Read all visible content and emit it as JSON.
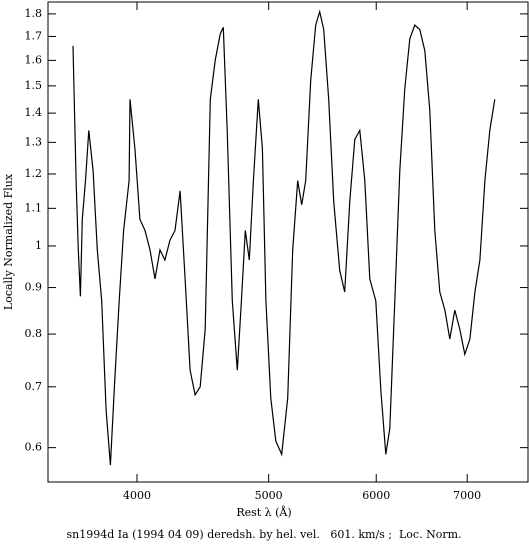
{
  "chart_data": {
    "type": "line",
    "xlabel": "Rest λ (Å)",
    "ylabel": "Locally Normalized Flux",
    "caption": "sn1994d Ia (1994 04 09) deredsh. by hel. vel.   601. km/s ;  Loc. Norm.",
    "xscale": "log",
    "yscale": "log",
    "xlim": [
      3440,
      7760
    ],
    "ylim": [
      0.55,
      1.855
    ],
    "xticks": [
      4000,
      5000,
      6000,
      7000
    ],
    "yticks": [
      0.6,
      0.7,
      0.8,
      0.9,
      1,
      1.1,
      1.2,
      1.3,
      1.4,
      1.5,
      1.6,
      1.7,
      1.8
    ],
    "series": [
      {
        "color": "#000000",
        "x": [
          3589,
          3608,
          3621,
          3634,
          3646,
          3666,
          3686,
          3713,
          3740,
          3768,
          3796,
          3824,
          3852,
          3881,
          3910,
          3947,
          3953,
          3986,
          4020,
          4055,
          4089,
          4124,
          4159,
          4194,
          4230,
          4266,
          4303,
          4340,
          4377,
          4414,
          4452,
          4490,
          4529,
          4567,
          4606,
          4630,
          4661,
          4701,
          4741,
          4774,
          4806,
          4839,
          4872,
          4913,
          4947,
          4977,
          5018,
          5061,
          5112,
          5164,
          5208,
          5252,
          5288,
          5324,
          5369,
          5415,
          5452,
          5489,
          5536,
          5583,
          5640,
          5688,
          5737,
          5786,
          5835,
          5885,
          5935,
          5996,
          6047,
          6098,
          6140,
          6192,
          6245,
          6298,
          6351,
          6405,
          6460,
          6515,
          6570,
          6626,
          6683,
          6740,
          6797,
          6855,
          6913,
          6972,
          7032,
          7092,
          7152,
          7213,
          7274,
          7336
        ],
        "values": [
          1.66,
          1.18,
          0.99,
          0.88,
          1.07,
          1.18,
          1.34,
          1.21,
          0.99,
          0.87,
          0.66,
          0.574,
          0.71,
          0.87,
          1.04,
          1.18,
          1.45,
          1.28,
          1.07,
          1.04,
          0.99,
          0.92,
          0.99,
          0.965,
          1.015,
          1.04,
          1.15,
          0.92,
          0.73,
          0.686,
          0.7,
          0.81,
          1.45,
          1.6,
          1.71,
          1.74,
          1.34,
          0.87,
          0.73,
          0.87,
          1.04,
          0.965,
          1.18,
          1.45,
          1.28,
          0.87,
          0.68,
          0.61,
          0.59,
          0.68,
          0.99,
          1.18,
          1.11,
          1.18,
          1.52,
          1.75,
          1.81,
          1.73,
          1.45,
          1.12,
          0.94,
          0.89,
          1.12,
          1.31,
          1.34,
          1.18,
          0.92,
          0.87,
          0.695,
          0.59,
          0.63,
          0.87,
          1.21,
          1.49,
          1.69,
          1.75,
          1.73,
          1.64,
          1.41,
          1.04,
          0.89,
          0.85,
          0.79,
          0.85,
          0.81,
          0.76,
          0.79,
          0.89,
          0.965,
          1.18,
          1.34,
          1.45
        ]
      }
    ]
  }
}
